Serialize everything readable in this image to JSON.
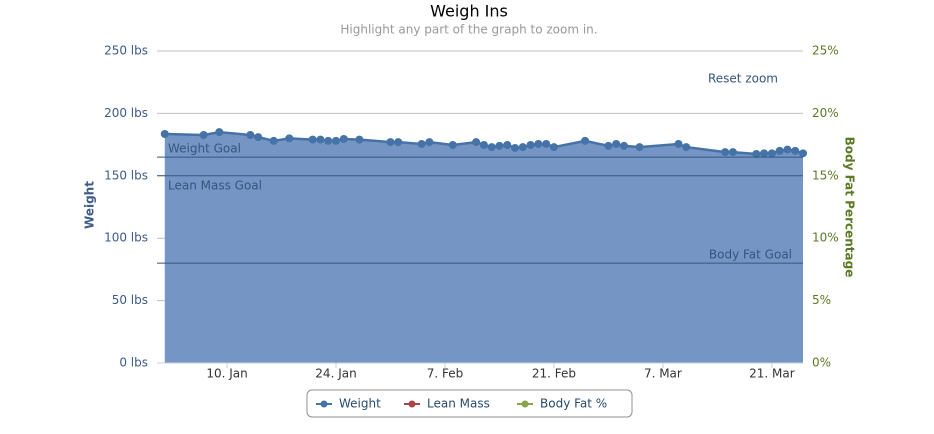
{
  "chart_data": {
    "type": "area",
    "title": "Weigh Ins",
    "subtitle": "Highlight any part of the graph to zoom in.",
    "reset_button": "Reset zoom",
    "y_label": "Weight",
    "y2_label": "Body Fat Percentage",
    "x": [
      "2. Jan",
      "7. Jan",
      "9. Jan",
      "13. Jan",
      "14. Jan",
      "16. Jan",
      "18. Jan",
      "21. Jan",
      "22. Jan",
      "23. Jan",
      "24. Jan",
      "25. Jan",
      "27. Jan",
      "31. Jan",
      "1. Feb",
      "4. Feb",
      "5. Feb",
      "8. Feb",
      "11. Feb",
      "12. Feb",
      "13. Feb",
      "14. Feb",
      "15. Feb",
      "16. Feb",
      "17. Feb",
      "18. Feb",
      "19. Feb",
      "20. Feb",
      "21. Feb",
      "25. Feb",
      "28. Feb",
      "1. Mar",
      "2. Mar",
      "4. Mar",
      "9. Mar",
      "10. Mar",
      "15. Mar",
      "16. Mar",
      "19. Mar",
      "20. Mar",
      "21. Mar",
      "22. Mar",
      "23. Mar",
      "24. Mar",
      "25. Mar"
    ],
    "series": [
      {
        "name": "Weight",
        "color": "#4572a7",
        "fill": "#7596c4",
        "values": [
          183.5,
          182.7,
          185,
          182.7,
          181,
          178,
          180,
          179,
          179,
          178,
          178,
          179.5,
          179,
          177,
          177,
          175.5,
          177,
          174.7,
          177,
          174.7,
          173,
          174,
          174.7,
          172.3,
          173,
          174.7,
          175.5,
          175.5,
          173,
          178,
          174,
          175.5,
          174,
          173,
          175.5,
          173,
          169,
          169,
          167.5,
          168,
          168,
          170,
          171,
          170,
          168
        ]
      },
      {
        "name": "Lean Mass",
        "color": "#aa4643",
        "values": [
          null,
          null,
          null,
          null,
          null,
          null,
          null,
          null,
          null,
          null,
          null,
          null,
          null,
          null,
          null,
          null,
          null,
          null,
          null,
          null,
          null,
          null,
          null,
          null,
          null,
          null,
          null,
          null,
          null,
          null,
          null,
          null,
          null,
          null,
          null,
          null,
          null,
          null,
          null,
          null,
          null,
          null,
          null,
          null,
          null
        ]
      },
      {
        "name": "Body Fat %",
        "color": "#89a54e",
        "axis": "y2",
        "values": [
          null,
          null,
          null,
          null,
          null,
          null,
          null,
          null,
          null,
          null,
          null,
          null,
          null,
          null,
          null,
          null,
          null,
          null,
          null,
          null,
          null,
          null,
          null,
          null,
          null,
          null,
          null,
          null,
          null,
          null,
          null,
          null,
          null,
          null,
          null,
          null,
          null,
          null,
          null,
          null,
          null,
          null,
          null,
          null,
          null
        ]
      }
    ],
    "xlim": [
      "1. Jan",
      "25. Mar"
    ],
    "xticks": [
      "10. Jan",
      "24. Jan",
      "7. Feb",
      "21. Feb",
      "7. Mar",
      "21. Mar"
    ],
    "ylim": [
      0,
      250
    ],
    "yticks": [
      {
        "value": 0,
        "label": "0 lbs"
      },
      {
        "value": 50,
        "label": "50 lbs"
      },
      {
        "value": 100,
        "label": "100 lbs"
      },
      {
        "value": 150,
        "label": "150 lbs"
      },
      {
        "value": 200,
        "label": "200 lbs"
      },
      {
        "value": 250,
        "label": "250 lbs"
      }
    ],
    "y2lim": [
      0,
      25
    ],
    "y2ticks": [
      {
        "value": 0,
        "label": "0%"
      },
      {
        "value": 5,
        "label": "5%"
      },
      {
        "value": 10,
        "label": "10%"
      },
      {
        "value": 15,
        "label": "15%"
      },
      {
        "value": 20,
        "label": "20%"
      },
      {
        "value": 25,
        "label": "25%"
      }
    ],
    "grid": true,
    "plot_lines": [
      {
        "label": "Weight Goal",
        "value": 165
      },
      {
        "label": "Lean Mass Goal",
        "value": 150
      },
      {
        "label": "Body Fat Goal",
        "value": 8,
        "axis": "y2"
      }
    ]
  }
}
